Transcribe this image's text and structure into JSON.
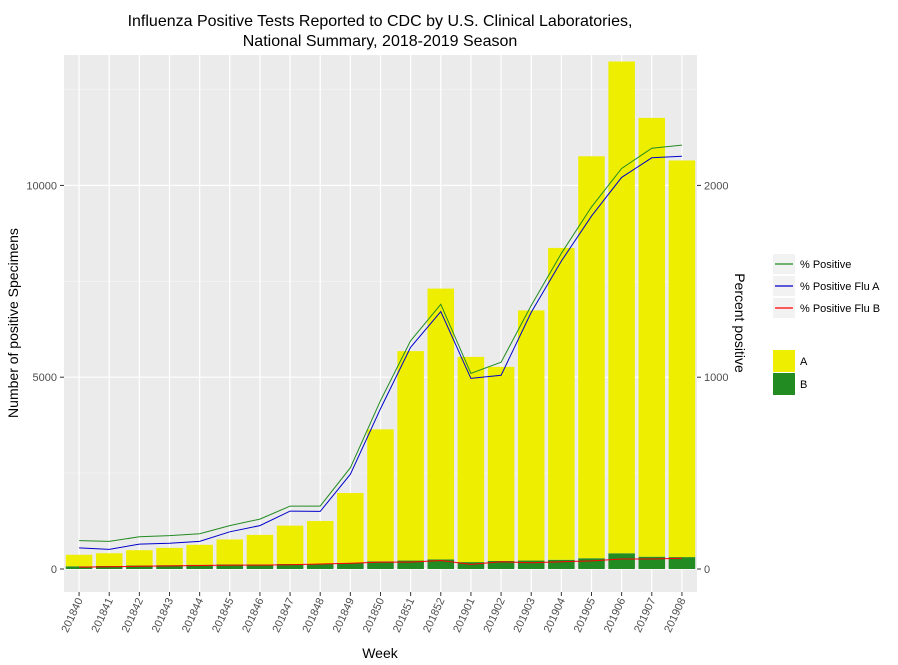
{
  "chart_data": {
    "type": "bar",
    "title_line1": "Influenza Positive Tests Reported to CDC by U.S. Clinical Laboratories,",
    "title_line2": "National Summary, 2018-2019 Season",
    "xlabel": "Week",
    "ylabel": "Number of positive Specimens",
    "y2label": "Percent positive",
    "ylim": [
      -600,
      13400
    ],
    "yticks": [
      0,
      5000,
      10000
    ],
    "y2ticks": [
      0,
      1000,
      2000
    ],
    "y2_scale_note": "secondary axis = primary axis / 5",
    "grid": true,
    "legend_position": "right",
    "categories": [
      "201840",
      "201841",
      "201842",
      "201843",
      "201844",
      "201845",
      "201846",
      "201847",
      "201848",
      "201849",
      "201850",
      "201851",
      "201852",
      "201901",
      "201902",
      "201903",
      "201904",
      "201905",
      "201906",
      "201907",
      "201908"
    ],
    "bar_series": [
      {
        "name": "A",
        "color": "#eeee00",
        "values": [
          300,
          330,
          400,
          450,
          520,
          650,
          770,
          1000,
          1120,
          1820,
          3440,
          5460,
          7060,
          5350,
          5060,
          6520,
          8130,
          10480,
          12820,
          11440,
          10340
        ]
      },
      {
        "name": "B",
        "color": "#228b22",
        "values": [
          70,
          80,
          90,
          100,
          110,
          120,
          120,
          130,
          130,
          160,
          200,
          220,
          250,
          180,
          210,
          220,
          240,
          280,
          410,
          320,
          310
        ]
      }
    ],
    "line_series": [
      {
        "name": "% Positive",
        "color": "#228b22",
        "values": [
          740,
          720,
          840,
          870,
          920,
          1130,
          1300,
          1640,
          1640,
          2640,
          4390,
          5950,
          6900,
          5100,
          5390,
          6870,
          8230,
          9440,
          10440,
          10970,
          11050
        ]
      },
      {
        "name": "% Positive Flu A",
        "color": "#0000cd",
        "values": [
          550,
          510,
          650,
          670,
          720,
          970,
          1130,
          1510,
          1500,
          2470,
          4180,
          5780,
          6710,
          4970,
          5050,
          6690,
          8030,
          9200,
          10210,
          10720,
          10760
        ]
      },
      {
        "name": "% Positive Flu B",
        "color": "#ff0000",
        "values": [
          50,
          60,
          70,
          80,
          90,
          100,
          100,
          110,
          130,
          150,
          180,
          180,
          220,
          120,
          190,
          160,
          190,
          210,
          260,
          260,
          280
        ]
      }
    ]
  }
}
